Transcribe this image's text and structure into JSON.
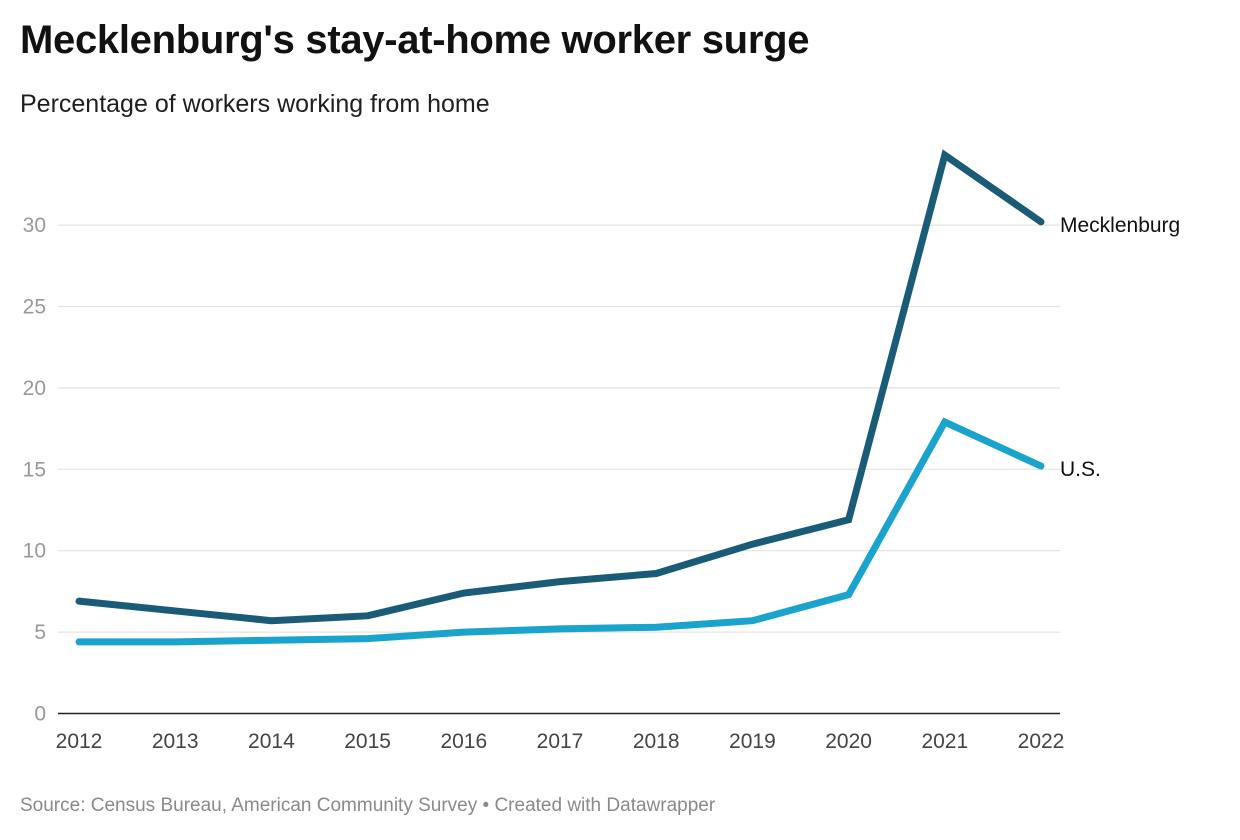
{
  "header": {
    "title": "Mecklenburg's stay-at-home worker surge",
    "subtitle": "Percentage of workers working from home"
  },
  "footer": {
    "source": "Source: Census Bureau, American Community Survey • Created with Datawrapper"
  },
  "chart_data": {
    "type": "line",
    "title": "Mecklenburg's stay-at-home worker surge",
    "subtitle": "Percentage of workers working from home",
    "xlabel": "",
    "ylabel": "",
    "x": [
      "2012",
      "2013",
      "2014",
      "2015",
      "2016",
      "2017",
      "2018",
      "2019",
      "2020",
      "2021",
      "2022"
    ],
    "ylim": [
      0,
      35
    ],
    "y_ticks": [
      0,
      5,
      10,
      15,
      20,
      25,
      30
    ],
    "grid": true,
    "legend": "inline labels at line ends",
    "series": [
      {
        "name": "Mecklenburg",
        "color": "#1a5b78",
        "values": [
          6.9,
          6.3,
          5.7,
          6.0,
          7.4,
          8.1,
          8.6,
          10.4,
          11.9,
          34.3,
          30.2
        ]
      },
      {
        "name": "U.S.",
        "color": "#1aa3cc",
        "values": [
          4.4,
          4.4,
          4.5,
          4.6,
          5.0,
          5.2,
          5.3,
          5.7,
          7.3,
          17.9,
          15.2
        ]
      }
    ]
  }
}
